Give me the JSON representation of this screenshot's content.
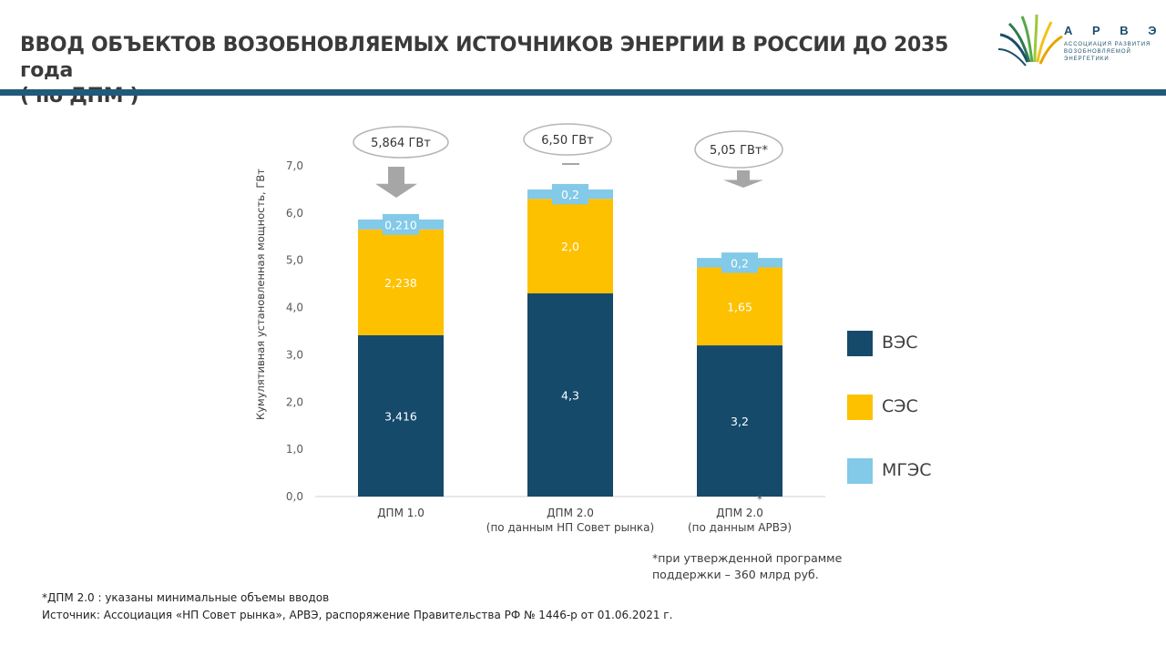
{
  "header": {
    "title_line1": "ВВОД ОБЪЕКТОВ ВОЗОБНОВЛЯЕМЫХ ИСТОЧНИКОВ ЭНЕРГИИ В РОССИИ ДО 2035 года",
    "title_line2": "( по ДПМ )",
    "bar_color": "#1f5a7a"
  },
  "logo": {
    "name": "А Р В Э",
    "subtitle_line1": "АССОЦИАЦИЯ РАЗВИТИЯ",
    "subtitle_line2": "ВОЗОБНОВЛЯЕМОЙ ЭНЕРГЕТИКИ",
    "icon": "sunburst-logo-icon"
  },
  "chart_data": {
    "type": "bar",
    "stacked": true,
    "ylabel": "Кумулятивная установленная мощность, ГВт",
    "ylim": [
      0,
      7
    ],
    "yticks": [
      "0,0",
      "1,0",
      "2,0",
      "3,0",
      "4,0",
      "5,0",
      "6,0",
      "7,0"
    ],
    "categories": [
      [
        "ДПМ 1.0"
      ],
      [
        "ДПМ 2.0",
        "(по данным НП Совет рынка)"
      ],
      [
        "ДПМ 2.0",
        "(по данным АРВЭ)"
      ]
    ],
    "series": [
      {
        "name": "ВЭС",
        "color": "#154a6b",
        "values": [
          3.416,
          4.3,
          3.2
        ],
        "labels": [
          "3,416",
          "4,3",
          "3,2"
        ]
      },
      {
        "name": "СЭС",
        "color": "#fdc100",
        "values": [
          2.238,
          2.0,
          1.65
        ],
        "labels": [
          "2,238",
          "2,0",
          "1,65"
        ]
      },
      {
        "name": "МГЭС",
        "color": "#83c9e8",
        "values": [
          0.21,
          0.2,
          0.2
        ],
        "labels": [
          "0,210",
          "0,2",
          "0,2"
        ]
      }
    ],
    "totals": [
      "5,864 ГВт",
      "6,50 ГВт",
      "5,05 ГВт*"
    ],
    "asterisk": "*",
    "legend_position": "right"
  },
  "footnotes": {
    "program_line1": "*при утвержденной программе",
    "program_line2": "поддержки – 360 млрд руб.",
    "dpm": "*ДПМ 2.0 : указаны минимальные объемы вводов",
    "source": "Источник: Ассоциация «НП Совет рынка», АРВЭ, распоряжение Правительства РФ № 1446-р от 01.06.2021 г."
  }
}
